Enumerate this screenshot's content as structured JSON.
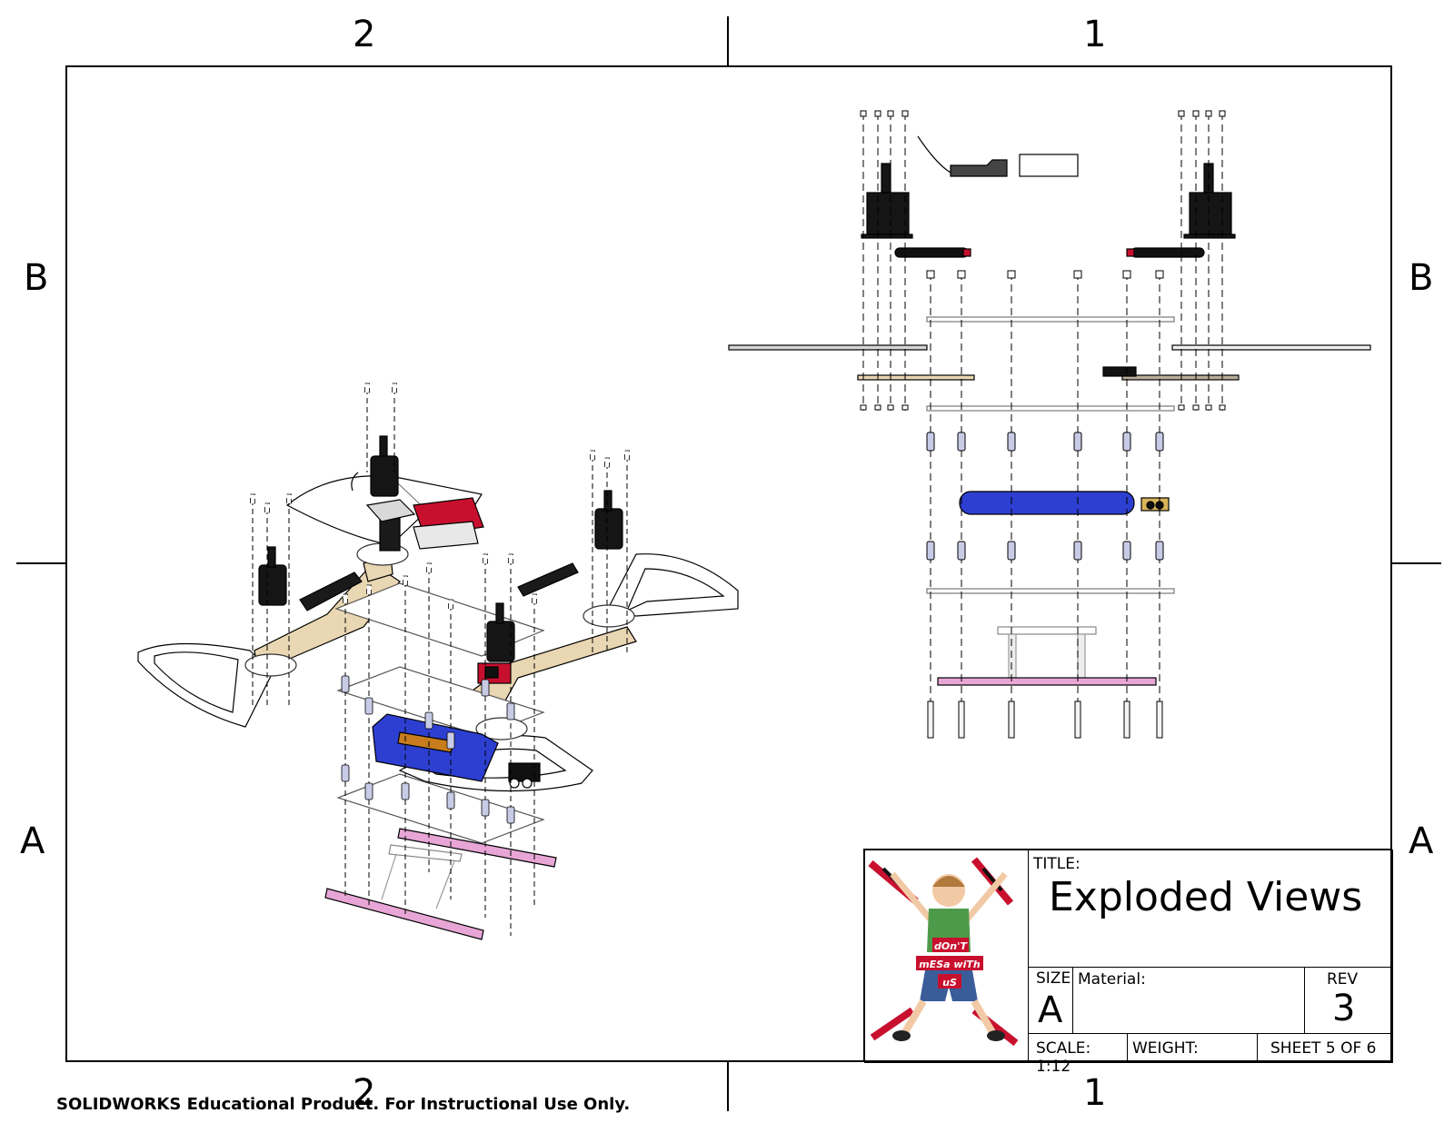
{
  "zones": {
    "top_left": "2",
    "top_right": "1",
    "bottom_left": "2",
    "bottom_right": "1",
    "left_upper": "B",
    "left_lower": "A",
    "right_upper": "B",
    "right_lower": "A"
  },
  "title_block": {
    "title_label": "TITLE:",
    "title": "Exploded Views",
    "size_label": "SIZE",
    "size_value": "A",
    "material_label": "Material:",
    "rev_label": "REV",
    "rev_value": "3",
    "scale": "SCALE: 1:12",
    "weight": "WEIGHT:",
    "sheet": "SHEET 5 OF 6",
    "logo_text": [
      "dOn'T",
      "mESa wiTh",
      "uS"
    ]
  },
  "footer": "SOLIDWORKS Educational Product. For Instructional Use Only.",
  "colors": {
    "battery": "#2d3fd1",
    "plywood": "#e9d6b2",
    "leg": "#e7a6d6",
    "motor": "#151515",
    "accent_red": "#c8102e"
  }
}
